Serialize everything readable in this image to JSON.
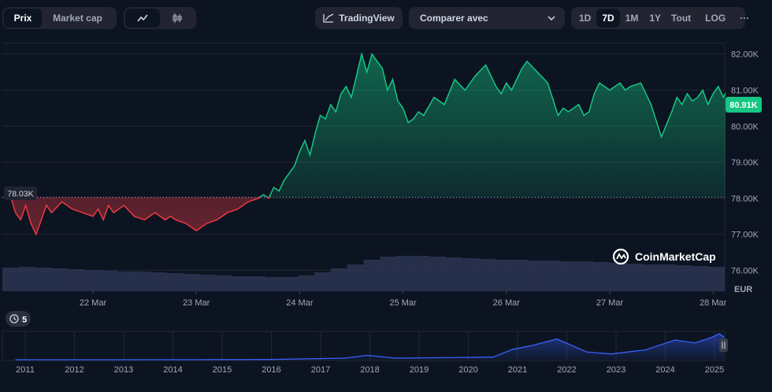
{
  "toolbar": {
    "view_tabs": [
      "Prix",
      "Market cap"
    ],
    "active_view": "Prix",
    "chart_style_icons": [
      "line-chart-icon",
      "candlestick-icon"
    ],
    "tradingview_label": "TradingView",
    "compare_label": "Comparer avec",
    "ranges": [
      "1D",
      "7D",
      "1M",
      "1Y",
      "Tout"
    ],
    "active_range": "7D",
    "log_label": "LOG",
    "more_label": "···"
  },
  "badges": {
    "baseline_label": "78.03K",
    "current_price_label": "80.91K",
    "currency_label": "EUR",
    "watermark": "CoinMarketCap",
    "events_count": "5"
  },
  "colors": {
    "background": "#0d1421",
    "up": "#16c784",
    "down": "#ea3943",
    "volume": "#2a3350",
    "navigator_line": "#3861fb",
    "grid": "#1f2636"
  },
  "chart_data": [
    {
      "type": "line",
      "title": "",
      "ylabel": "EUR",
      "x_ticks": [
        "22 Mar",
        "23 Mar",
        "24 Mar",
        "25 Mar",
        "26 Mar",
        "27 Mar",
        "28 Mar"
      ],
      "y_ticks": [
        "77.00K",
        "78.00K",
        "79.00K",
        "80.00K",
        "81.00K",
        "82.00K",
        "76.00K"
      ],
      "ylim": [
        75.4,
        82.3
      ],
      "baseline": 78.03,
      "last_price": 80.91,
      "x_start_day": 21.18,
      "x_end_day": 28.12,
      "series": [
        {
          "x": [
            21.18,
            21.25,
            21.3,
            21.35,
            21.4,
            21.45,
            21.5,
            21.55,
            21.6,
            21.7,
            21.8,
            21.9,
            22.0,
            22.05,
            22.1,
            22.15,
            22.2,
            22.3,
            22.4,
            22.5,
            22.6,
            22.7,
            22.75,
            22.8,
            22.9,
            23.0,
            23.1,
            23.2,
            23.3,
            23.4,
            23.5,
            23.6,
            23.65,
            23.7,
            23.75,
            23.8,
            23.85,
            23.9,
            23.95,
            24.0,
            24.05,
            24.1,
            24.15,
            24.2,
            24.25,
            24.3,
            24.35,
            24.4,
            24.45,
            24.5,
            24.55,
            24.6,
            24.65,
            24.7,
            24.75,
            24.8,
            24.85,
            24.9,
            24.95,
            25.0,
            25.05,
            25.1,
            25.15,
            25.2,
            25.3,
            25.4,
            25.5,
            25.6,
            25.7,
            25.8,
            25.9,
            25.95,
            26.0,
            26.05,
            26.1,
            26.15,
            26.2,
            26.3,
            26.4,
            26.5,
            26.55,
            26.6,
            26.7,
            26.75,
            26.8,
            26.85,
            26.9,
            26.95,
            27.0,
            27.05,
            27.1,
            27.15,
            27.2,
            27.3,
            27.4,
            27.5,
            27.6,
            27.65,
            27.7,
            27.75,
            27.8,
            27.85,
            27.9,
            27.95,
            28.0,
            28.05,
            28.1,
            28.12
          ],
          "y": [
            78.3,
            77.6,
            77.4,
            77.8,
            77.3,
            77.0,
            77.4,
            77.8,
            77.6,
            77.9,
            77.7,
            77.6,
            77.5,
            77.7,
            77.4,
            77.8,
            77.6,
            77.8,
            77.5,
            77.4,
            77.6,
            77.4,
            77.5,
            77.4,
            77.3,
            77.1,
            77.3,
            77.4,
            77.6,
            77.7,
            77.9,
            78.0,
            78.1,
            78.0,
            78.3,
            78.2,
            78.5,
            78.7,
            78.9,
            79.3,
            79.6,
            79.2,
            79.8,
            80.3,
            80.2,
            80.6,
            80.4,
            80.9,
            81.1,
            80.8,
            81.4,
            82.0,
            81.5,
            82.0,
            81.8,
            81.6,
            81.0,
            81.3,
            80.7,
            80.5,
            80.1,
            80.2,
            80.4,
            80.3,
            80.8,
            80.6,
            81.3,
            81.0,
            81.4,
            81.7,
            81.1,
            80.9,
            81.2,
            81.0,
            81.3,
            81.6,
            81.8,
            81.5,
            81.2,
            80.3,
            80.5,
            80.4,
            80.6,
            80.3,
            80.4,
            80.9,
            81.2,
            81.1,
            81.0,
            81.1,
            81.2,
            81.0,
            81.1,
            81.2,
            80.6,
            79.7,
            80.4,
            80.8,
            80.6,
            80.9,
            80.7,
            80.8,
            81.0,
            80.6,
            80.9,
            81.1,
            80.8,
            80.91
          ]
        }
      ],
      "volume": [
        0.3,
        0.31,
        0.3,
        0.29,
        0.28,
        0.27,
        0.26,
        0.25,
        0.25,
        0.24,
        0.23,
        0.22,
        0.21,
        0.2,
        0.19,
        0.19,
        0.18,
        0.18,
        0.2,
        0.24,
        0.29,
        0.34,
        0.4,
        0.44,
        0.45,
        0.45,
        0.44,
        0.43,
        0.42,
        0.41,
        0.4,
        0.4,
        0.39,
        0.39,
        0.38,
        0.38,
        0.37,
        0.36,
        0.35,
        0.34,
        0.34,
        0.33,
        0.32,
        0.31
      ]
    },
    {
      "type": "area",
      "title": "",
      "x_ticks": [
        "2011",
        "2012",
        "2013",
        "2014",
        "2015",
        "2016",
        "2017",
        "2018",
        "2019",
        "2020",
        "2021",
        "2022",
        "2023",
        "2024",
        "2025"
      ],
      "x": [
        2010.8,
        2013,
        2016,
        2017.5,
        2017.95,
        2018.5,
        2019.5,
        2020.5,
        2020.9,
        2021.3,
        2021.8,
        2022.4,
        2022.9,
        2023.6,
        2024.2,
        2024.6,
        2024.9,
        2025.1,
        2025.2
      ],
      "values": [
        0.0,
        0.0,
        0.01,
        0.06,
        0.17,
        0.06,
        0.08,
        0.1,
        0.4,
        0.55,
        0.8,
        0.3,
        0.22,
        0.38,
        0.76,
        0.65,
        0.83,
        1.0,
        0.87
      ]
    }
  ]
}
